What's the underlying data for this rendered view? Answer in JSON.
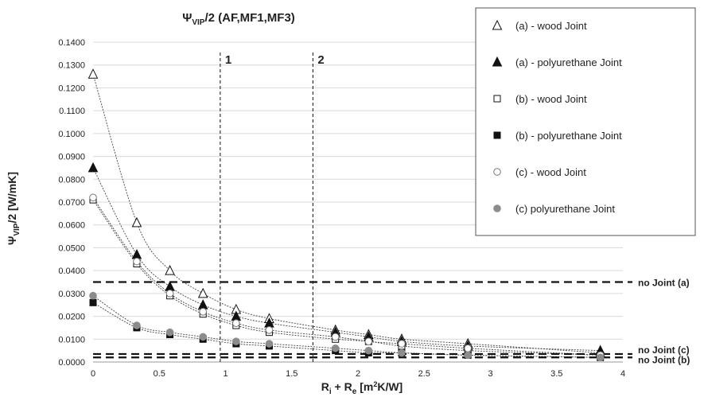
{
  "chart_data": {
    "type": "scatter",
    "title_main": "Ψ",
    "title_sub": "VIP",
    "title_rest": "/2 (AF,MF1,MF3)",
    "ylabel_main": "Ψ",
    "ylabel_sub": "VIP",
    "ylabel_rest": "/2 [W/mK]",
    "xlabel_p1": "R",
    "xlabel_s1": "i",
    "xlabel_p2": " + R",
    "xlabel_s2": "e",
    "xlabel_p3": " [m",
    "xlabel_sup": "2",
    "xlabel_p4": "K/W]",
    "xlim": [
      0,
      4
    ],
    "ylim": [
      0,
      0.14
    ],
    "x_ticks": [
      "0",
      "0.5",
      "1",
      "1.5",
      "2",
      "2.5",
      "3",
      "3.5",
      "4"
    ],
    "y_ticks": [
      "0.0000",
      "0.0100",
      "0.0200",
      "0.0300",
      "0.0400",
      "0.0500",
      "0.0600",
      "0.0700",
      "0.0800",
      "0.0900",
      "0.1000",
      "0.1100",
      "0.1200",
      "0.1300",
      "0.1400"
    ],
    "grid": true,
    "legend_position": "top-right",
    "series": [
      {
        "name": "(a) - wood Joint",
        "marker": "triangle-open",
        "x": [
          0,
          0.33,
          0.58,
          0.83,
          1.08,
          1.33,
          1.83,
          2.08,
          2.33,
          2.83,
          3.83
        ],
        "y": [
          0.126,
          0.061,
          0.04,
          0.03,
          0.023,
          0.019,
          0.014,
          0.012,
          0.01,
          0.008,
          0.004
        ]
      },
      {
        "name": "(a) - polyurethane Joint",
        "marker": "triangle-filled",
        "x": [
          0,
          0.33,
          0.58,
          0.83,
          1.08,
          1.33,
          1.83,
          2.08,
          2.33,
          2.83,
          3.83
        ],
        "y": [
          0.085,
          0.047,
          0.033,
          0.025,
          0.02,
          0.017,
          0.013,
          0.011,
          0.009,
          0.007,
          0.005
        ]
      },
      {
        "name": "(b) - wood Joint",
        "marker": "square-open",
        "x": [
          0,
          0.33,
          0.58,
          0.83,
          1.08,
          1.33,
          1.83,
          2.08,
          2.33,
          2.83,
          3.83
        ],
        "y": [
          0.071,
          0.043,
          0.029,
          0.021,
          0.016,
          0.013,
          0.01,
          0.009,
          0.007,
          0.005,
          0.003
        ]
      },
      {
        "name": "(b) - polyurethane Joint",
        "marker": "square-filled",
        "x": [
          0,
          0.33,
          0.58,
          0.83,
          1.08,
          1.33,
          1.83,
          2.08,
          2.33,
          2.83,
          3.83
        ],
        "y": [
          0.026,
          0.015,
          0.012,
          0.01,
          0.008,
          0.007,
          0.005,
          0.004,
          0.004,
          0.003,
          0.002
        ]
      },
      {
        "name": "(c) - wood Joint",
        "marker": "circle-open",
        "x": [
          0,
          0.33,
          0.58,
          0.83,
          1.08,
          1.33,
          1.83,
          2.08,
          2.33,
          2.83,
          3.83
        ],
        "y": [
          0.072,
          0.044,
          0.03,
          0.022,
          0.017,
          0.014,
          0.011,
          0.009,
          0.008,
          0.006,
          0.003
        ]
      },
      {
        "name": "(c) polyurethane Joint",
        "marker": "circle-filled",
        "x": [
          0,
          0.33,
          0.58,
          0.83,
          1.08,
          1.33,
          1.83,
          2.08,
          2.33,
          2.83,
          3.83
        ],
        "y": [
          0.029,
          0.016,
          0.013,
          0.011,
          0.009,
          0.008,
          0.006,
          0.005,
          0.004,
          0.003,
          0.002
        ]
      }
    ],
    "reference_lines": [
      {
        "label": "no Joint (a)",
        "y": 0.035
      },
      {
        "label": "no Joint (c)",
        "y": 0.0035
      },
      {
        "label": "no Joint (b)",
        "y": 0.002
      }
    ],
    "vertical_lines": [
      {
        "label": "1",
        "x": 0.96
      },
      {
        "label": "2",
        "x": 1.66
      }
    ]
  }
}
